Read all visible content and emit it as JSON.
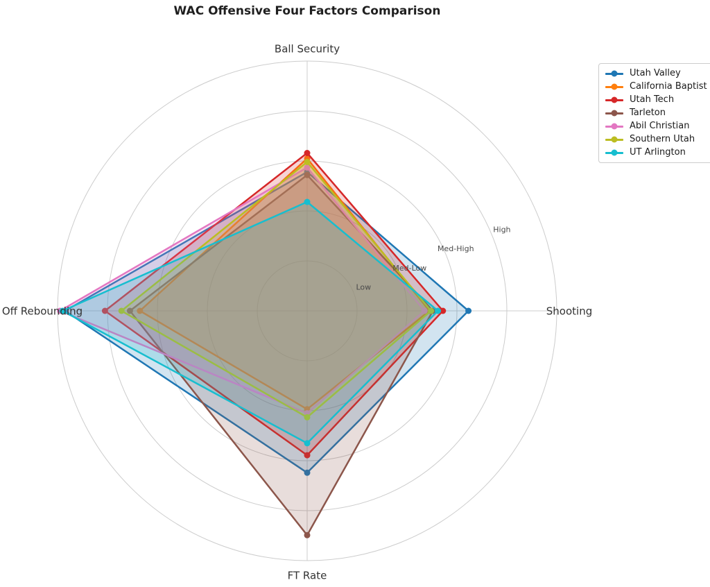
{
  "title": "WAC Offensive Four Factors Comparison",
  "chart_data": {
    "type": "radar",
    "axes": [
      "Ball Security",
      "Shooting",
      "FT Rate",
      "Off Rebounding"
    ],
    "radial_ticks": [
      "Low",
      "Med-Low",
      "Med-High",
      "High"
    ],
    "radial_tick_values": [
      1,
      2,
      3,
      4
    ],
    "radial_range": [
      0,
      5
    ],
    "grid": true,
    "legend_position": "upper right",
    "series": [
      {
        "name": "Utah Valley",
        "color": "#1f77b4",
        "values": [
          2.78,
          3.23,
          3.24,
          4.85
        ]
      },
      {
        "name": "California Baptist",
        "color": "#ff7f0e",
        "values": [
          3.05,
          2.45,
          1.97,
          3.35
        ]
      },
      {
        "name": "Utah Tech",
        "color": "#d62728",
        "values": [
          3.16,
          2.72,
          2.89,
          4.05
        ]
      },
      {
        "name": "Tarleton",
        "color": "#8c564b",
        "values": [
          2.72,
          2.52,
          4.49,
          3.55
        ]
      },
      {
        "name": "Abil Christian",
        "color": "#e377c2",
        "values": [
          2.87,
          2.35,
          2.05,
          4.95
        ]
      },
      {
        "name": "Southern Utah",
        "color": "#bcbd22",
        "values": [
          2.98,
          2.48,
          2.13,
          3.72
        ]
      },
      {
        "name": "UT Arlington",
        "color": "#17becf",
        "values": [
          2.18,
          2.62,
          2.65,
          4.9
        ]
      }
    ],
    "style": {
      "fill_alpha": 0.2,
      "line_width": 2.5,
      "marker_radius": 4.5,
      "grid_color": "#cccccc",
      "axis_label_color": "#333333",
      "tick_label_color": "#4a4a4a",
      "legend_border_color": "#cccccc"
    }
  }
}
